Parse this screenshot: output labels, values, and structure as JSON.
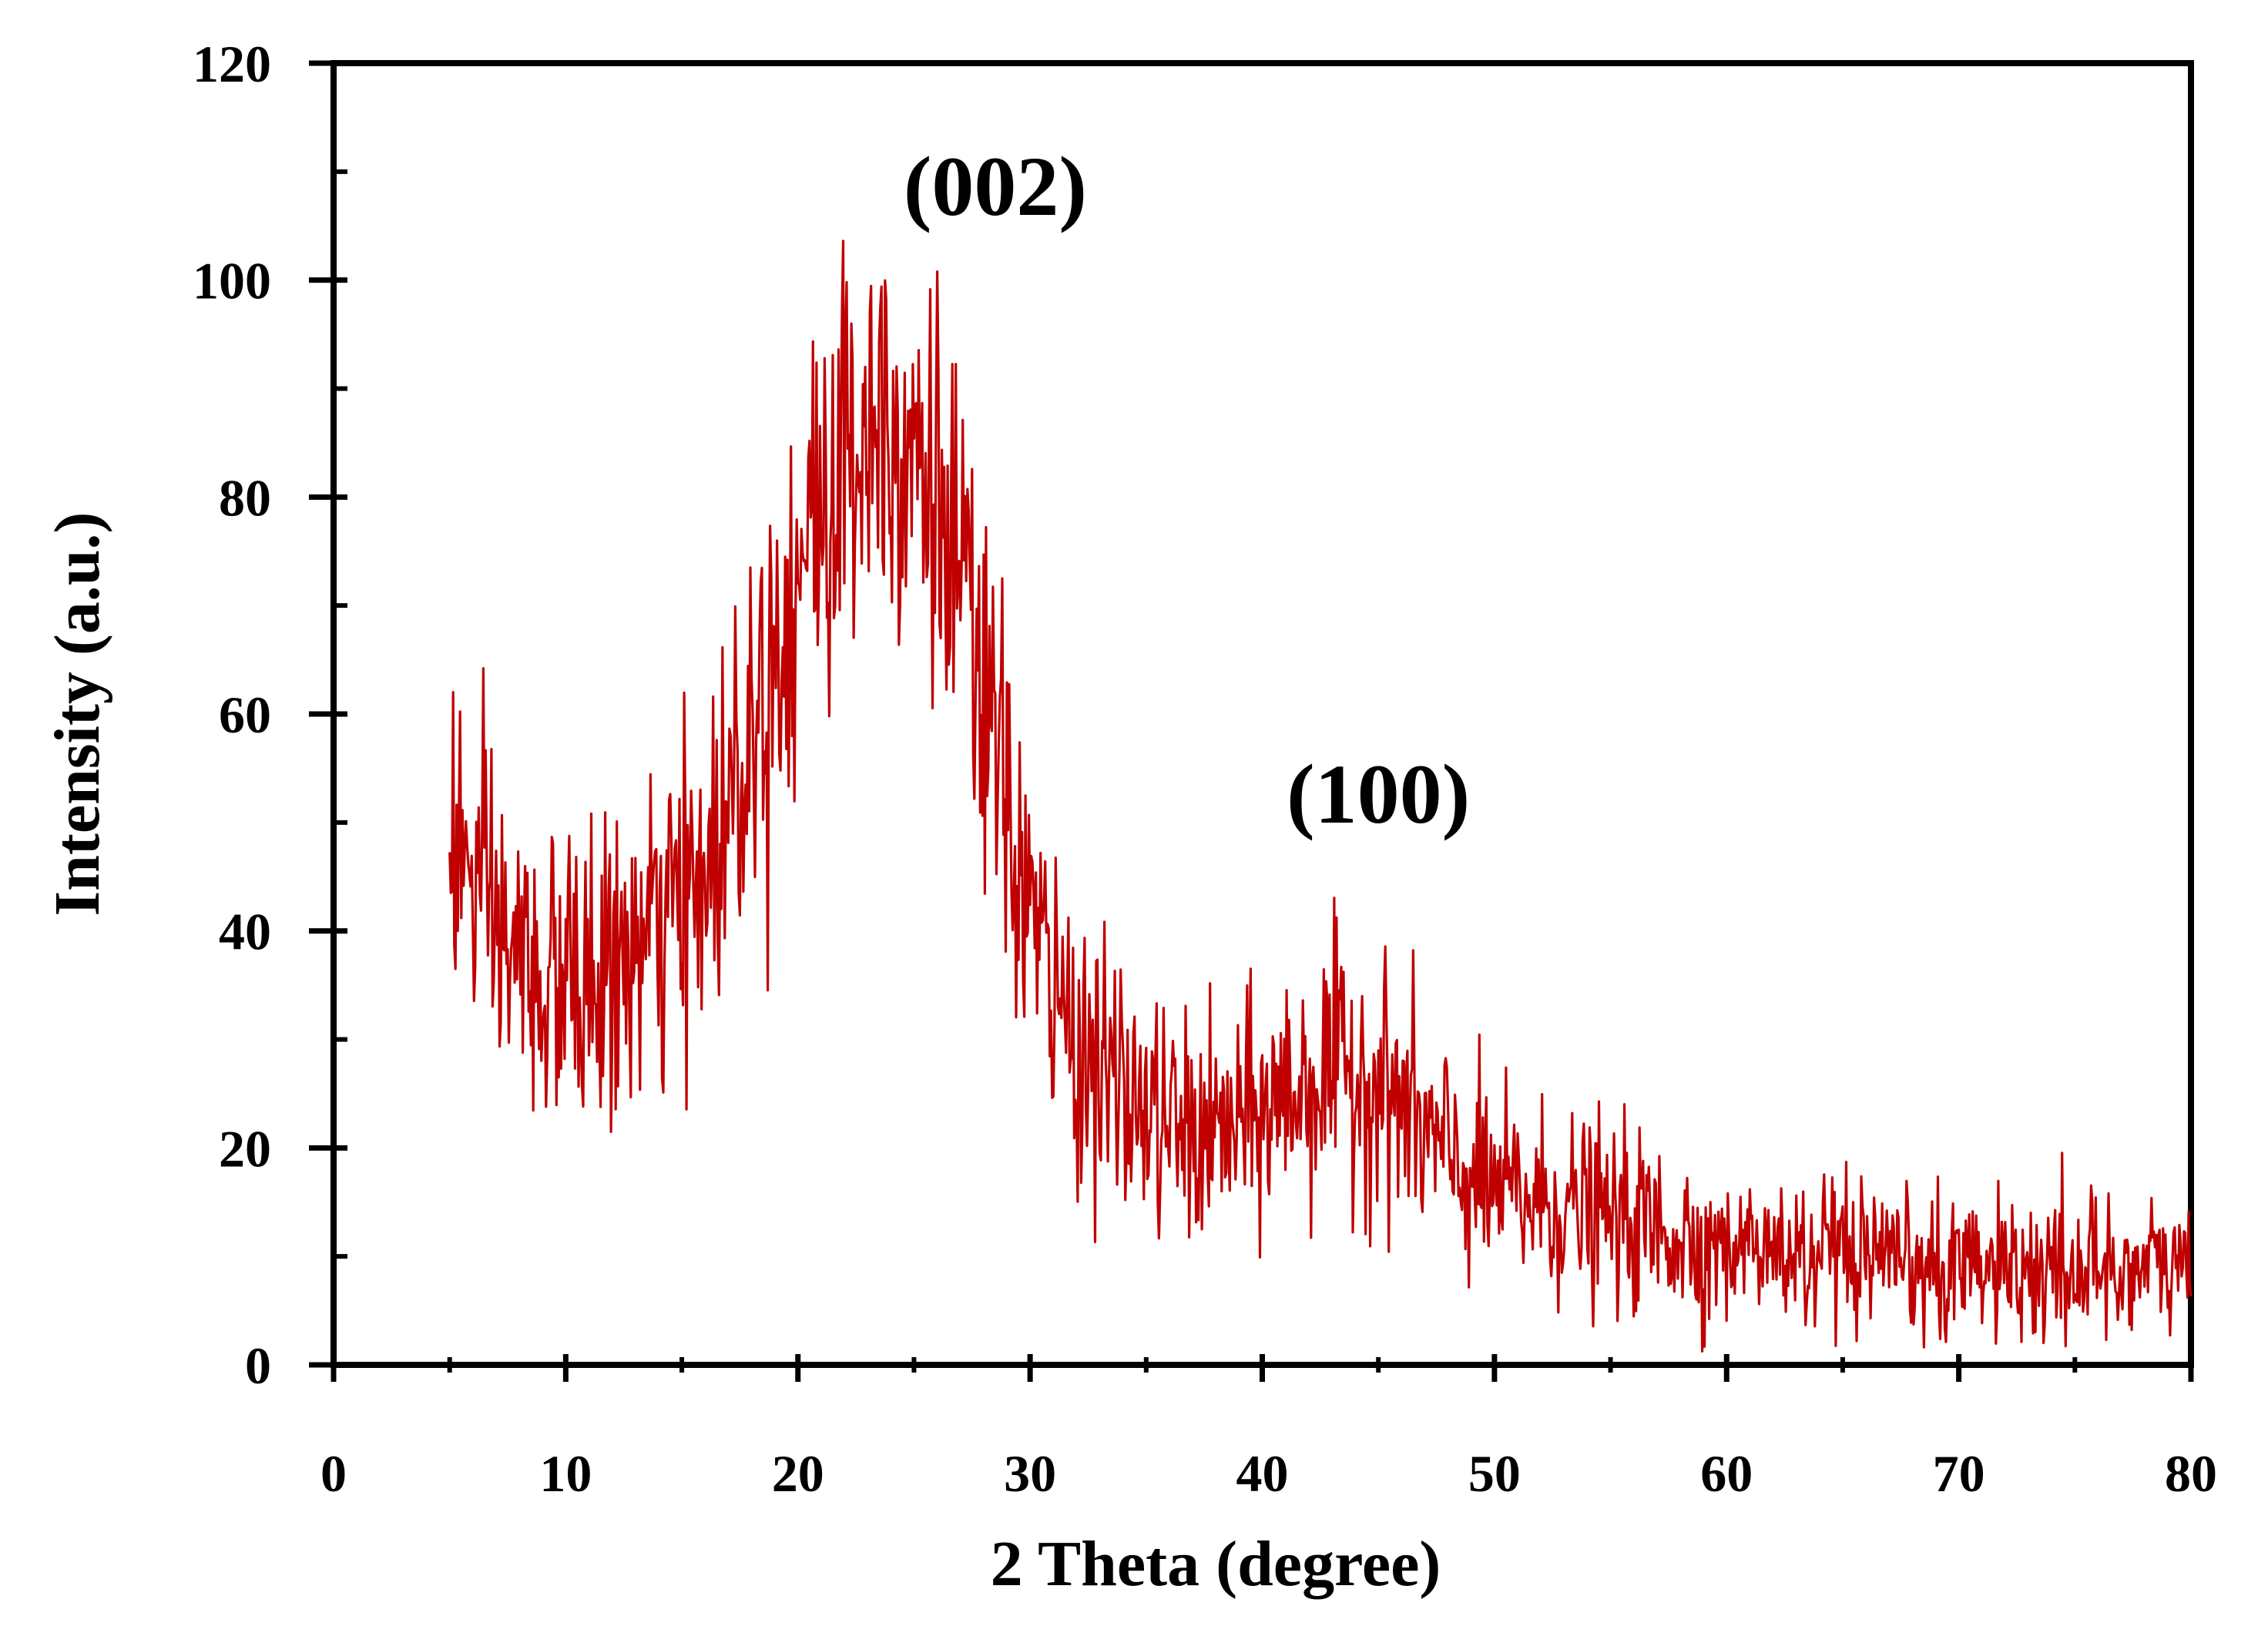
{
  "chart_data": {
    "type": "line",
    "title": "",
    "xlabel": "2 Theta (degree)",
    "ylabel": "Intensity (a.u.)",
    "xlim": [
      0,
      80
    ],
    "ylim": [
      0,
      120
    ],
    "x_major_ticks": [
      0,
      10,
      20,
      30,
      40,
      50,
      60,
      70,
      80
    ],
    "y_major_ticks": [
      0,
      20,
      40,
      60,
      80,
      100,
      120
    ],
    "x_minor_step": 5,
    "y_minor_step": 10,
    "grid": false,
    "legend": "none",
    "line_color": "#c00000",
    "axis_color": "#000000",
    "annotations": [
      {
        "text": "(002)",
        "x": 28.5,
        "y": 106
      },
      {
        "text": "(100)",
        "x": 45.0,
        "y": 50
      }
    ],
    "series": [
      {
        "x_start": 5,
        "x_end": 80,
        "step": 0.05,
        "noise_amplitude": 8,
        "envelope": [
          [
            5,
            50
          ],
          [
            6,
            44
          ],
          [
            7,
            40
          ],
          [
            8,
            37
          ],
          [
            9,
            35
          ],
          [
            10,
            35
          ],
          [
            11,
            35
          ],
          [
            12,
            36
          ],
          [
            13,
            38
          ],
          [
            14,
            40
          ],
          [
            15,
            42
          ],
          [
            16,
            45
          ],
          [
            17,
            52
          ],
          [
            18,
            60
          ],
          [
            19,
            66
          ],
          [
            20,
            73
          ],
          [
            21,
            79
          ],
          [
            22,
            83
          ],
          [
            23,
            88
          ],
          [
            24,
            88
          ],
          [
            25,
            86
          ],
          [
            26,
            80
          ],
          [
            27,
            71
          ],
          [
            28,
            61
          ],
          [
            29,
            51
          ],
          [
            30,
            42
          ],
          [
            31,
            34
          ],
          [
            32,
            30
          ],
          [
            33,
            27
          ],
          [
            34,
            25
          ],
          [
            35,
            23
          ],
          [
            36,
            22
          ],
          [
            37,
            21
          ],
          [
            38,
            21
          ],
          [
            39,
            22
          ],
          [
            40,
            23
          ],
          [
            41,
            25
          ],
          [
            42,
            26
          ],
          [
            43,
            27
          ],
          [
            44,
            27
          ],
          [
            45,
            26
          ],
          [
            46,
            24
          ],
          [
            47,
            21
          ],
          [
            48,
            19
          ],
          [
            49,
            17
          ],
          [
            50,
            16
          ],
          [
            52,
            15
          ],
          [
            54,
            14
          ],
          [
            56,
            13
          ],
          [
            58,
            12
          ],
          [
            60,
            11
          ],
          [
            63,
            10
          ],
          [
            66,
            9
          ],
          [
            70,
            8
          ],
          [
            75,
            9
          ],
          [
            78,
            9
          ],
          [
            80,
            9
          ]
        ]
      }
    ]
  }
}
